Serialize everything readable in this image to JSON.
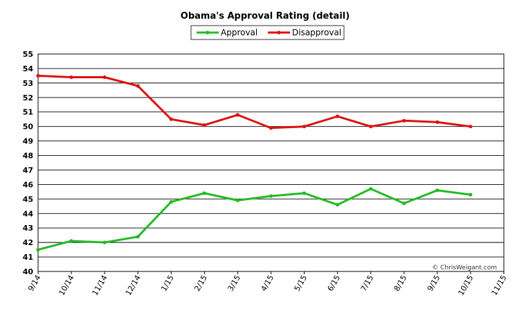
{
  "chart_data": {
    "type": "line",
    "title": "Obama's Approval Rating (detail)",
    "xlabel": "",
    "ylabel": "",
    "categories": [
      "9/14",
      "10/14",
      "11/14",
      "12/14",
      "1/15",
      "2/15",
      "3/15",
      "4/15",
      "5/15",
      "6/15",
      "7/15",
      "8/15",
      "9/15",
      "10/15",
      "11/15"
    ],
    "ylim": [
      40,
      55
    ],
    "yticks": [
      "40",
      "41",
      "42",
      "43",
      "44",
      "45",
      "46",
      "47",
      "48",
      "49",
      "50",
      "51",
      "52",
      "53",
      "54",
      "55"
    ],
    "grid": true,
    "legend_position": "top-center",
    "series": [
      {
        "name": "Approval",
        "color": "#22bb22",
        "values": [
          41.5,
          42.1,
          42.0,
          42.4,
          44.8,
          45.4,
          44.9,
          45.2,
          45.4,
          44.6,
          45.7,
          44.7,
          45.6,
          45.3,
          null
        ]
      },
      {
        "name": "Disapproval",
        "color": "#dd1111",
        "values": [
          53.5,
          53.4,
          53.4,
          52.8,
          50.5,
          50.1,
          50.8,
          49.9,
          50.0,
          50.7,
          50.0,
          50.4,
          50.3,
          50.0,
          null
        ]
      }
    ],
    "watermark": "© ChrisWeigant.com"
  }
}
